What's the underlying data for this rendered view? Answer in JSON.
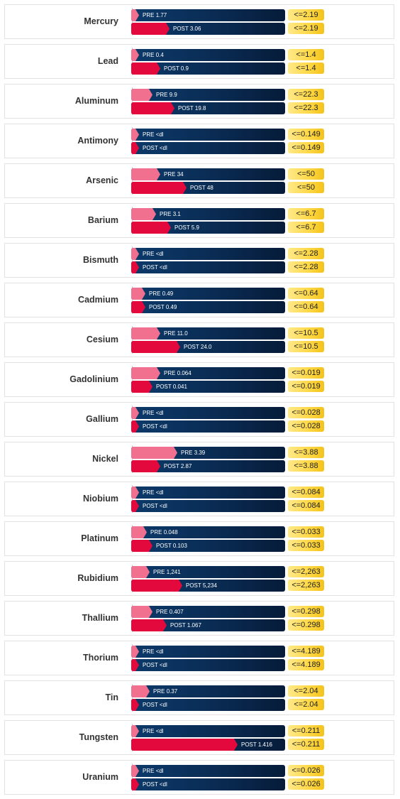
{
  "chart_data": {
    "type": "bar",
    "orientation": "horizontal",
    "series_labels": [
      "PRE",
      "POST"
    ],
    "rows": [
      {
        "name": "Mercury",
        "pre": "1.77",
        "post": "3.06",
        "pre_fill": 0.05,
        "post_fill": 0.25,
        "ref_pre": "<=2.19",
        "ref_post": "<=2.19"
      },
      {
        "name": "Lead",
        "pre": "0.4",
        "post": "0.9",
        "pre_fill": 0.05,
        "post_fill": 0.19,
        "ref_pre": "<=1.4",
        "ref_post": "<=1.4"
      },
      {
        "name": "Aluminum",
        "pre": "9.9",
        "post": "19.8",
        "pre_fill": 0.14,
        "post_fill": 0.28,
        "ref_pre": "<=22.3",
        "ref_post": "<=22.3"
      },
      {
        "name": "Antimony",
        "pre": "<dl",
        "post": "<dl",
        "pre_fill": 0.05,
        "post_fill": 0.05,
        "ref_pre": "<=0.149",
        "ref_post": "<=0.149"
      },
      {
        "name": "Arsenic",
        "pre": "34",
        "post": "48",
        "pre_fill": 0.19,
        "post_fill": 0.36,
        "ref_pre": "<=50",
        "ref_post": "<=50"
      },
      {
        "name": "Barium",
        "pre": "3.1",
        "post": "5.9",
        "pre_fill": 0.16,
        "post_fill": 0.26,
        "ref_pre": "<=6.7",
        "ref_post": "<=6.7"
      },
      {
        "name": "Bismuth",
        "pre": "<dl",
        "post": "<dl",
        "pre_fill": 0.05,
        "post_fill": 0.05,
        "ref_pre": "<=2.28",
        "ref_post": "<=2.28"
      },
      {
        "name": "Cadmium",
        "pre": "0.49",
        "post": "0.49",
        "pre_fill": 0.09,
        "post_fill": 0.09,
        "ref_pre": "<=0.64",
        "ref_post": "<=0.64"
      },
      {
        "name": "Cesium",
        "pre": "11.0",
        "post": "24.0",
        "pre_fill": 0.19,
        "post_fill": 0.32,
        "ref_pre": "<=10.5",
        "ref_post": "<=10.5"
      },
      {
        "name": "Gadolinium",
        "pre": "0.064",
        "post": "0.041",
        "pre_fill": 0.19,
        "post_fill": 0.14,
        "ref_pre": "<=0.019",
        "ref_post": "<=0.019"
      },
      {
        "name": "Gallium",
        "pre": "<dl",
        "post": "<dl",
        "pre_fill": 0.05,
        "post_fill": 0.05,
        "ref_pre": "<=0.028",
        "ref_post": "<=0.028"
      },
      {
        "name": "Nickel",
        "pre": "3.39",
        "post": "2.87",
        "pre_fill": 0.3,
        "post_fill": 0.19,
        "ref_pre": "<=3.88",
        "ref_post": "<=3.88"
      },
      {
        "name": "Niobium",
        "pre": "<dl",
        "post": "<dl",
        "pre_fill": 0.05,
        "post_fill": 0.05,
        "ref_pre": "<=0.084",
        "ref_post": "<=0.084"
      },
      {
        "name": "Platinum",
        "pre": "0.048",
        "post": "0.103",
        "pre_fill": 0.1,
        "post_fill": 0.14,
        "ref_pre": "<=0.033",
        "ref_post": "<=0.033"
      },
      {
        "name": "Rubidium",
        "pre": "1,241",
        "post": "5,234",
        "pre_fill": 0.12,
        "post_fill": 0.33,
        "ref_pre": "<=2,263",
        "ref_post": "<=2,263"
      },
      {
        "name": "Thallium",
        "pre": "0.407",
        "post": "1.067",
        "pre_fill": 0.14,
        "post_fill": 0.23,
        "ref_pre": "<=0.298",
        "ref_post": "<=0.298"
      },
      {
        "name": "Thorium",
        "pre": "<dl",
        "post": "<dl",
        "pre_fill": 0.05,
        "post_fill": 0.05,
        "ref_pre": "<=4.189",
        "ref_post": "<=4.189"
      },
      {
        "name": "Tin",
        "pre": "0.37",
        "post": "<dl",
        "pre_fill": 0.12,
        "post_fill": 0.05,
        "ref_pre": "<=2.04",
        "ref_post": "<=2.04"
      },
      {
        "name": "Tungsten",
        "pre": "<dl",
        "post": "1.416",
        "pre_fill": 0.05,
        "post_fill": 0.69,
        "ref_pre": "<=0.211",
        "ref_post": "<=0.211"
      },
      {
        "name": "Uranium",
        "pre": "<dl",
        "post": "<dl",
        "pre_fill": 0.05,
        "post_fill": 0.05,
        "ref_pre": "<=0.026",
        "ref_post": "<=0.026"
      }
    ]
  },
  "colors": {
    "pre_fill": "#f2708f",
    "post_fill": "#e3093d",
    "track": "#0a2d55",
    "reference": "#ffd94a"
  }
}
